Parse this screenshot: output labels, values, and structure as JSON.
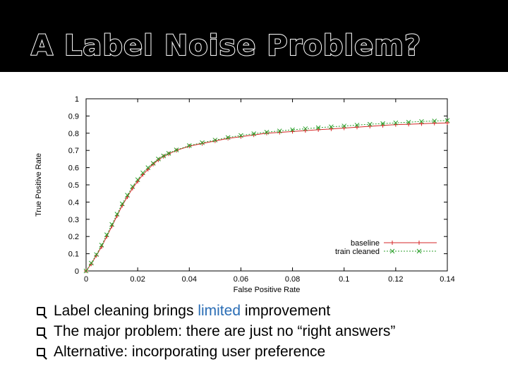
{
  "slide": {
    "title": "A Label Noise Problem?",
    "bullets": [
      {
        "before": "Label cleaning brings ",
        "highlight": "limited",
        "after": " improvement"
      },
      {
        "text": "The major problem: there are just no “right answers”"
      },
      {
        "text": "Alternative: incorporating user preference"
      }
    ],
    "highlight_color": "#2a6db5"
  },
  "chart_data": {
    "type": "line",
    "xlabel": "False Positive Rate",
    "ylabel": "True Positive Rate",
    "xlim": [
      0,
      0.14
    ],
    "ylim": [
      0,
      1
    ],
    "xticks": [
      "0",
      "0.02",
      "0.04",
      "0.06",
      "0.08",
      "0.1",
      "0.12",
      "0.14"
    ],
    "yticks": [
      "0",
      "0.1",
      "0.2",
      "0.3",
      "0.4",
      "0.5",
      "0.6",
      "0.7",
      "0.8",
      "0.9",
      "1"
    ],
    "grid": false,
    "legend": "bottom-right",
    "series": [
      {
        "name": "baseline",
        "color": "#d62728",
        "marker": "plus",
        "x": [
          0,
          0.002,
          0.004,
          0.006,
          0.008,
          0.01,
          0.012,
          0.014,
          0.016,
          0.018,
          0.02,
          0.022,
          0.024,
          0.026,
          0.028,
          0.03,
          0.032,
          0.035,
          0.04,
          0.045,
          0.05,
          0.055,
          0.06,
          0.065,
          0.07,
          0.075,
          0.08,
          0.085,
          0.09,
          0.095,
          0.1,
          0.105,
          0.11,
          0.115,
          0.12,
          0.125,
          0.13,
          0.135,
          0.14
        ],
        "y": [
          0,
          0.04,
          0.09,
          0.14,
          0.2,
          0.26,
          0.32,
          0.38,
          0.43,
          0.48,
          0.52,
          0.56,
          0.59,
          0.62,
          0.645,
          0.665,
          0.68,
          0.7,
          0.725,
          0.74,
          0.755,
          0.77,
          0.78,
          0.79,
          0.8,
          0.805,
          0.81,
          0.815,
          0.82,
          0.825,
          0.83,
          0.835,
          0.84,
          0.845,
          0.85,
          0.852,
          0.855,
          0.858,
          0.86
        ]
      },
      {
        "name": "train cleaned",
        "color": "#2ca02c",
        "marker": "x",
        "x": [
          0,
          0.002,
          0.004,
          0.006,
          0.008,
          0.01,
          0.012,
          0.014,
          0.016,
          0.018,
          0.02,
          0.022,
          0.024,
          0.026,
          0.028,
          0.03,
          0.032,
          0.035,
          0.04,
          0.045,
          0.05,
          0.055,
          0.06,
          0.065,
          0.07,
          0.075,
          0.08,
          0.085,
          0.09,
          0.095,
          0.1,
          0.105,
          0.11,
          0.115,
          0.12,
          0.125,
          0.13,
          0.135,
          0.14
        ],
        "y": [
          0,
          0.045,
          0.095,
          0.15,
          0.21,
          0.27,
          0.33,
          0.39,
          0.44,
          0.49,
          0.53,
          0.57,
          0.6,
          0.625,
          0.65,
          0.668,
          0.683,
          0.703,
          0.728,
          0.745,
          0.76,
          0.775,
          0.787,
          0.797,
          0.806,
          0.813,
          0.82,
          0.826,
          0.832,
          0.837,
          0.842,
          0.847,
          0.852,
          0.856,
          0.86,
          0.864,
          0.868,
          0.871,
          0.874
        ]
      }
    ]
  }
}
